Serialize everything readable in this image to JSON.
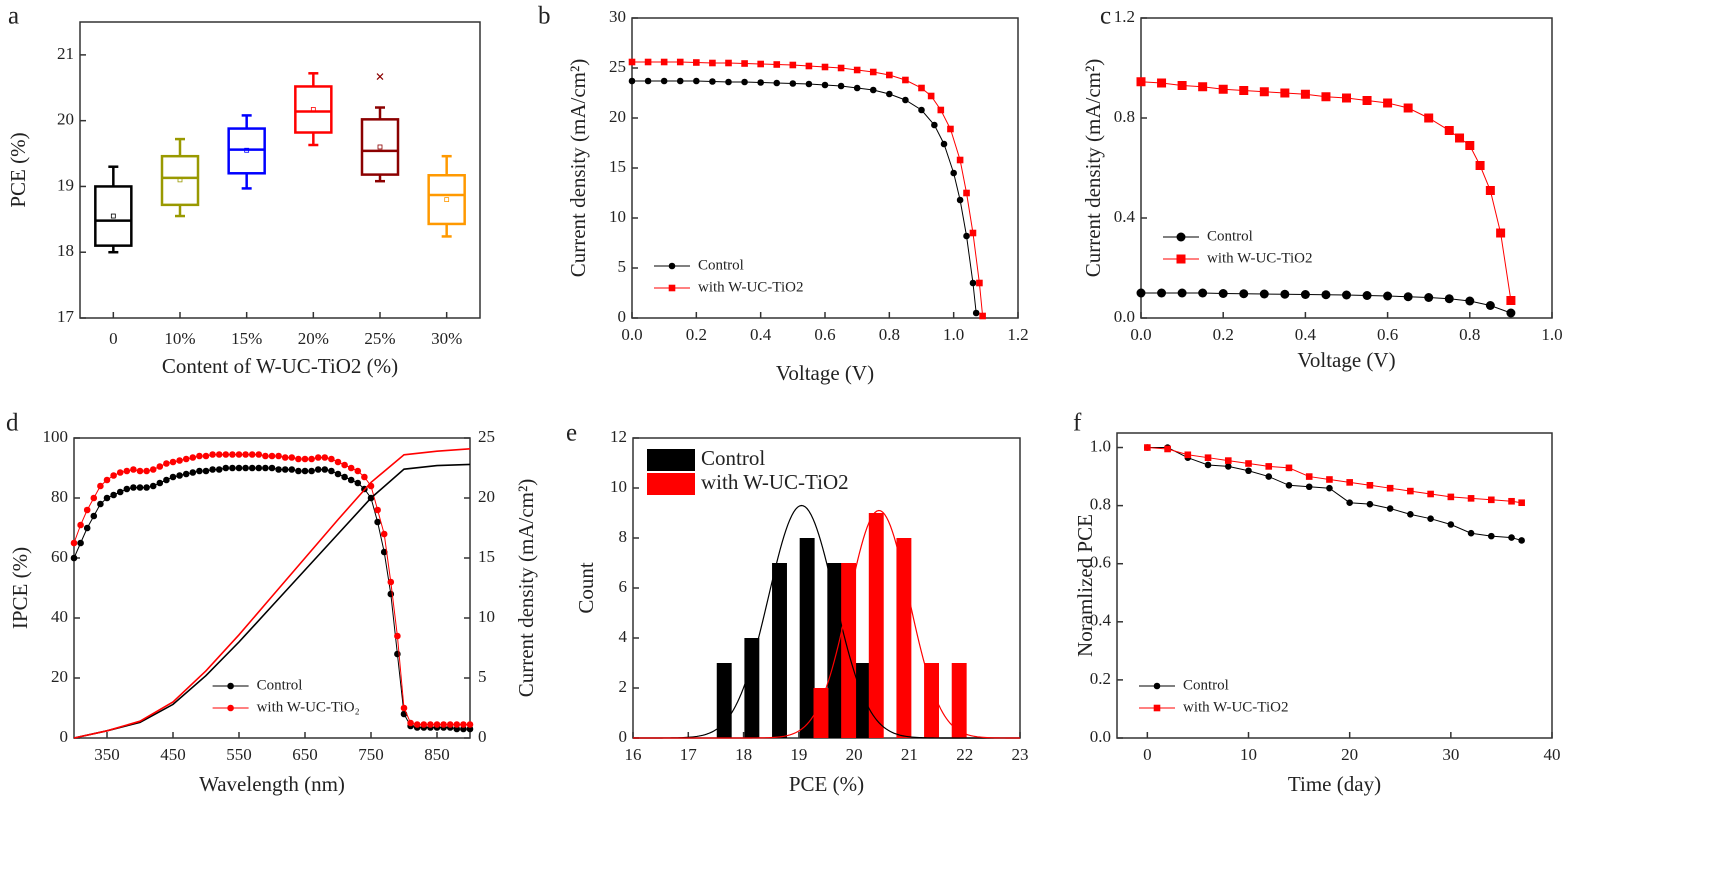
{
  "chart_data": [
    {
      "panel": "a",
      "type": "box",
      "xlabel": "Content of W-UC-TiO2 (%)",
      "ylabel": "PCE (%)",
      "categories": [
        "0",
        "10%",
        "15%",
        "20%",
        "25%",
        "30%"
      ],
      "ylim": [
        17,
        21.5
      ],
      "yticks": [
        17,
        18,
        19,
        20,
        21
      ],
      "series": [
        {
          "color": "#000000",
          "min": 18.0,
          "q1": 18.1,
          "median": 18.48,
          "q3": 19.0,
          "max": 19.3,
          "mean": 18.55
        },
        {
          "color": "#999900",
          "min": 18.55,
          "q1": 18.72,
          "median": 19.13,
          "q3": 19.46,
          "max": 19.72,
          "mean": 19.1
        },
        {
          "color": "#0000ff",
          "min": 18.97,
          "q1": 19.2,
          "median": 19.56,
          "q3": 19.88,
          "max": 20.08,
          "mean": 19.55
        },
        {
          "color": "#ff0000",
          "min": 19.63,
          "q1": 19.82,
          "median": 20.14,
          "q3": 20.52,
          "max": 20.72,
          "mean": 20.17
        },
        {
          "color": "#8b0000",
          "min": 19.08,
          "q1": 19.18,
          "median": 19.54,
          "q3": 20.02,
          "max": 20.2,
          "mean": 19.6,
          "outliers": [
            20.67
          ]
        },
        {
          "color": "#ff9900",
          "min": 18.24,
          "q1": 18.43,
          "median": 18.87,
          "q3": 19.17,
          "max": 19.46,
          "mean": 18.8
        }
      ]
    },
    {
      "panel": "b",
      "type": "line",
      "xlabel": "Voltage (V)",
      "ylabel": "Current density (mA/cm²)",
      "xlim": [
        0,
        1.2
      ],
      "xticks": [
        {
          "value": 0,
          "label": "0.0"
        },
        0.2,
        0.4,
        0.6,
        0.8,
        {
          "value": 1,
          "label": "1.0"
        },
        1.2
      ],
      "ylim": [
        0,
        30
      ],
      "yticks": [
        0,
        5,
        10,
        15,
        20,
        25,
        30
      ],
      "legend": "lower left",
      "series": [
        {
          "name": "Control",
          "color": "#000000",
          "marker": "circle",
          "x": [
            0,
            0.05,
            0.1,
            0.15,
            0.2,
            0.25,
            0.3,
            0.35,
            0.4,
            0.45,
            0.5,
            0.55,
            0.6,
            0.65,
            0.7,
            0.75,
            0.8,
            0.85,
            0.9,
            0.94,
            0.97,
            1.0,
            1.02,
            1.04,
            1.06,
            1.07
          ],
          "values": [
            23.7,
            23.7,
            23.7,
            23.7,
            23.7,
            23.65,
            23.6,
            23.6,
            23.55,
            23.5,
            23.45,
            23.4,
            23.3,
            23.2,
            23.0,
            22.8,
            22.4,
            21.8,
            20.8,
            19.3,
            17.4,
            14.5,
            11.8,
            8.2,
            3.5,
            0.5
          ]
        },
        {
          "name": "with W-UC-TiO2",
          "color": "#ff0000",
          "marker": "square",
          "x": [
            0,
            0.05,
            0.1,
            0.15,
            0.2,
            0.25,
            0.3,
            0.35,
            0.4,
            0.45,
            0.5,
            0.55,
            0.6,
            0.65,
            0.7,
            0.75,
            0.8,
            0.85,
            0.9,
            0.93,
            0.96,
            0.99,
            1.02,
            1.04,
            1.06,
            1.08,
            1.09
          ],
          "values": [
            25.6,
            25.6,
            25.6,
            25.6,
            25.55,
            25.5,
            25.5,
            25.45,
            25.4,
            25.35,
            25.3,
            25.2,
            25.1,
            25.0,
            24.8,
            24.6,
            24.3,
            23.8,
            23.0,
            22.2,
            20.8,
            18.9,
            15.8,
            12.5,
            8.5,
            3.5,
            0.2
          ]
        }
      ]
    },
    {
      "panel": "c",
      "type": "line",
      "xlabel": "Voltage (V)",
      "ylabel": "Current density (mA/cm²)",
      "xlim": [
        0,
        1
      ],
      "xticks": [
        {
          "value": 0,
          "label": "0.0"
        },
        0.2,
        0.4,
        0.6,
        0.8,
        {
          "value": 1,
          "label": "1.0"
        }
      ],
      "ylim": [
        0,
        1.2
      ],
      "yticks": [
        {
          "value": 0,
          "label": "0.0"
        },
        0.4,
        0.8,
        1.2
      ],
      "legend": "center left",
      "series": [
        {
          "name": "Control",
          "color": "#000000",
          "marker": "circle",
          "x": [
            0,
            0.05,
            0.1,
            0.15,
            0.2,
            0.25,
            0.3,
            0.35,
            0.4,
            0.45,
            0.5,
            0.55,
            0.6,
            0.65,
            0.7,
            0.75,
            0.8,
            0.85,
            0.9
          ],
          "values": [
            0.1,
            0.1,
            0.1,
            0.1,
            0.098,
            0.097,
            0.096,
            0.095,
            0.094,
            0.093,
            0.092,
            0.09,
            0.088,
            0.085,
            0.082,
            0.077,
            0.068,
            0.05,
            0.02
          ]
        },
        {
          "name": "with W-UC-TiO2",
          "color": "#ff0000",
          "marker": "square",
          "x": [
            0,
            0.05,
            0.1,
            0.15,
            0.2,
            0.25,
            0.3,
            0.35,
            0.4,
            0.45,
            0.5,
            0.55,
            0.6,
            0.65,
            0.7,
            0.75,
            0.775,
            0.8,
            0.825,
            0.85,
            0.875,
            0.9
          ],
          "values": [
            0.945,
            0.94,
            0.93,
            0.925,
            0.915,
            0.91,
            0.905,
            0.9,
            0.895,
            0.885,
            0.88,
            0.87,
            0.86,
            0.84,
            0.8,
            0.75,
            0.72,
            0.69,
            0.61,
            0.51,
            0.34,
            0.07
          ]
        }
      ]
    },
    {
      "panel": "d",
      "type": "line",
      "xlabel": "Wavelength (nm)",
      "ylabel": "IPCE (%)",
      "y2label": "Current density (mA/cm²)",
      "xlim": [
        300,
        900
      ],
      "xticks": [
        350,
        450,
        550,
        650,
        750,
        850
      ],
      "ylim": [
        0,
        100
      ],
      "yticks": [
        0,
        20,
        40,
        60,
        80,
        100
      ],
      "y2lim": [
        0,
        25
      ],
      "y2ticks": [
        0,
        5,
        10,
        15,
        20,
        25
      ],
      "legend": "lower center",
      "x": [
        300,
        310,
        320,
        330,
        340,
        350,
        360,
        370,
        380,
        390,
        400,
        410,
        420,
        430,
        440,
        450,
        460,
        470,
        480,
        490,
        500,
        510,
        520,
        530,
        540,
        550,
        560,
        570,
        580,
        590,
        600,
        610,
        620,
        630,
        640,
        650,
        660,
        670,
        680,
        690,
        700,
        710,
        720,
        730,
        740,
        750,
        760,
        770,
        780,
        790,
        800,
        810,
        820,
        830,
        840,
        850,
        860,
        870,
        880,
        890,
        900
      ],
      "series": [
        {
          "name": "Control",
          "color": "#000000",
          "marker": "circle",
          "values": [
            60,
            65,
            70,
            74,
            78,
            80,
            81,
            82,
            83,
            83.5,
            83.5,
            83.5,
            84,
            85,
            86,
            87,
            87.5,
            88,
            88.5,
            89,
            89,
            89.5,
            89.5,
            90,
            90,
            90,
            90,
            90,
            90,
            90,
            90,
            89.5,
            89.5,
            89.5,
            89,
            89,
            89,
            89.5,
            89.5,
            89,
            88,
            87,
            86,
            85,
            83,
            80,
            72,
            62,
            48,
            28,
            8,
            4,
            3.5,
            3.5,
            3.5,
            3.5,
            3.5,
            3.5,
            3,
            3,
            3
          ]
        },
        {
          "name": "with W-UC-TiO₂",
          "color": "#ff0000",
          "marker": "circle",
          "values": [
            65,
            71,
            76,
            80,
            84,
            86,
            87.5,
            88.5,
            89,
            89.5,
            89,
            89,
            89.5,
            90.5,
            91.5,
            92,
            92.5,
            93,
            93.5,
            94,
            94,
            94.5,
            94.5,
            94.5,
            94.5,
            94.5,
            94.5,
            94.5,
            94.5,
            94,
            94,
            94,
            93.5,
            93.5,
            93,
            93,
            93,
            93.5,
            93.5,
            93,
            92,
            91,
            90,
            89,
            87,
            84,
            76,
            68,
            52,
            34,
            10,
            5,
            4.5,
            4.5,
            4.5,
            4.5,
            4.5,
            4.5,
            4.5,
            4.5,
            4.5
          ]
        },
        {
          "color": "#000000",
          "axis": "y2",
          "x": [
            300,
            350,
            400,
            450,
            500,
            550,
            600,
            650,
            700,
            750,
            800,
            850,
            900
          ],
          "values": [
            0,
            0.6,
            1.3,
            2.8,
            5.2,
            8.0,
            11.0,
            14.0,
            17.0,
            20.0,
            22.4,
            22.7,
            22.8
          ]
        },
        {
          "color": "#ff0000",
          "axis": "y2",
          "x": [
            300,
            350,
            400,
            450,
            500,
            550,
            600,
            650,
            700,
            750,
            800,
            850,
            900
          ],
          "values": [
            0,
            0.6,
            1.4,
            3.0,
            5.6,
            8.6,
            11.8,
            15.0,
            18.2,
            21.3,
            23.6,
            23.9,
            24.1
          ]
        }
      ]
    },
    {
      "panel": "e",
      "type": "bar",
      "xlabel": "PCE (%)",
      "ylabel": "Count",
      "xlim": [
        16,
        23
      ],
      "xticks": [
        16,
        17,
        18,
        19,
        20,
        21,
        22,
        23
      ],
      "ylim": [
        0,
        12
      ],
      "yticks": [
        0,
        2,
        4,
        6,
        8,
        10,
        12
      ],
      "legend": "upper left",
      "series": [
        {
          "name": "Control",
          "color": "#000000",
          "x": [
            17.65,
            18.15,
            18.65,
            19.15,
            19.65,
            20.15
          ],
          "values": [
            3,
            4,
            7,
            8,
            7,
            3
          ],
          "fit": {
            "center": 19.05,
            "sigma": 0.6,
            "peak": 9.3
          }
        },
        {
          "name": "with W-UC-TiO2",
          "color": "#ff0000",
          "x": [
            19.4,
            19.9,
            20.4,
            20.9,
            21.4,
            21.9
          ],
          "values": [
            2,
            7,
            9,
            8,
            3,
            3
          ],
          "fit": {
            "center": 20.45,
            "sigma": 0.55,
            "peak": 9.1
          }
        }
      ]
    },
    {
      "panel": "f",
      "type": "line",
      "xlabel": "Time (day)",
      "ylabel": "Noramlized PCE",
      "xlim": [
        -3,
        40
      ],
      "xticks": [
        0,
        10,
        20,
        30,
        40
      ],
      "ylim": [
        0,
        1.05
      ],
      "yticks": [
        {
          "value": 0,
          "label": "0.0"
        },
        0.2,
        0.4,
        0.6,
        0.8,
        {
          "value": 1,
          "label": "1.0"
        }
      ],
      "legend": "lower left",
      "x": [
        0,
        2,
        4,
        6,
        8,
        10,
        12,
        14,
        16,
        18,
        20,
        22,
        24,
        26,
        28,
        30,
        32,
        34,
        36,
        37
      ],
      "series": [
        {
          "name": "Control",
          "color": "#000000",
          "marker": "circle",
          "values": [
            1.0,
            1.0,
            0.965,
            0.94,
            0.935,
            0.92,
            0.9,
            0.87,
            0.865,
            0.86,
            0.81,
            0.805,
            0.79,
            0.77,
            0.755,
            0.735,
            0.705,
            0.695,
            0.69,
            0.68
          ]
        },
        {
          "name": "with W-UC-TiO2",
          "color": "#ff0000",
          "marker": "square",
          "values": [
            1.0,
            0.995,
            0.975,
            0.965,
            0.955,
            0.945,
            0.935,
            0.93,
            0.9,
            0.89,
            0.88,
            0.87,
            0.86,
            0.85,
            0.84,
            0.83,
            0.825,
            0.82,
            0.815,
            0.81
          ]
        }
      ]
    }
  ]
}
